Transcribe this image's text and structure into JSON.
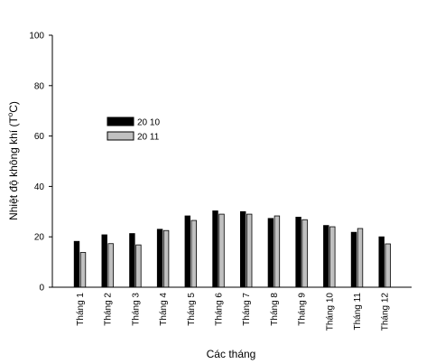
{
  "chart_data": {
    "type": "bar",
    "title": "",
    "xlabel": "Các tháng",
    "ylabel_main": "Nhiệt độ không khí (T",
    "ylabel_sup": "o",
    "ylabel_tail": "C)",
    "ylim": [
      0,
      100
    ],
    "yticks": [
      "0",
      "20",
      "40",
      "60",
      "80",
      "100"
    ],
    "grid": false,
    "legend_position": "upper-left",
    "categories": [
      "Tháng 1",
      "Tháng 2",
      "Tháng 3",
      "Tháng 4",
      "Tháng 5",
      "Tháng 6",
      "Tháng 7",
      "Tháng 8",
      "Tháng 9",
      "Tháng 10",
      "Tháng 11",
      "Tháng 12"
    ],
    "series": [
      {
        "name": "20 10",
        "color": "#000000",
        "values": [
          18.2,
          20.8,
          21.3,
          23.0,
          28.3,
          30.3,
          30.0,
          27.3,
          27.8,
          24.5,
          21.8,
          20.0
        ]
      },
      {
        "name": "20 11",
        "color": "#c0c0c0",
        "values": [
          13.8,
          17.3,
          16.8,
          22.5,
          26.5,
          29.0,
          29.0,
          28.3,
          26.8,
          24.0,
          23.3,
          17.2
        ]
      }
    ]
  }
}
